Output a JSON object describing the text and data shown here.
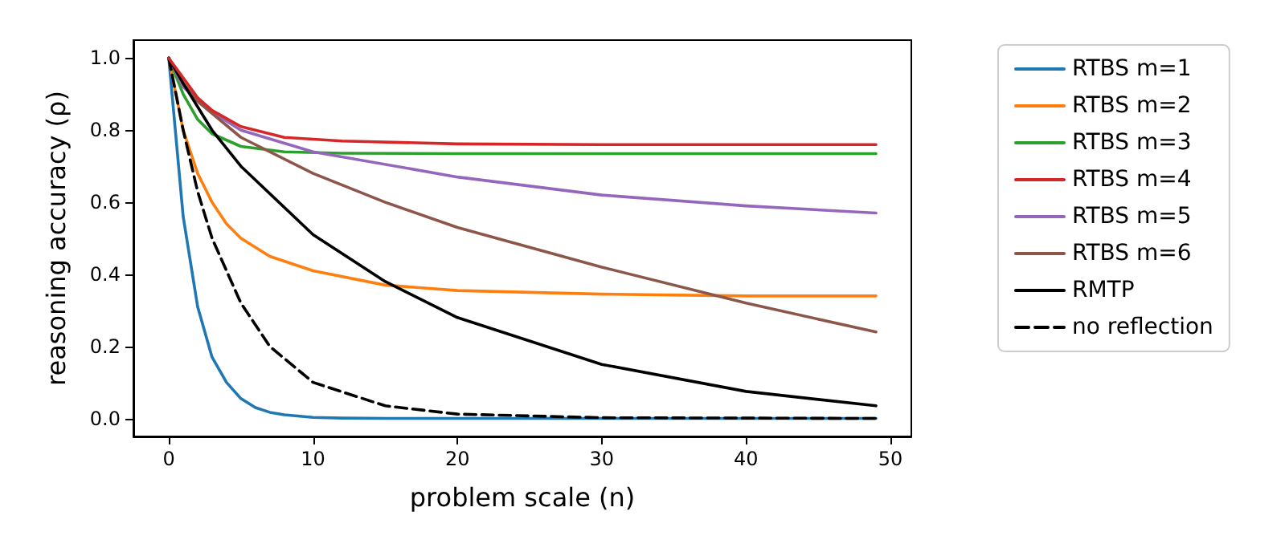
{
  "chart_data": {
    "type": "line",
    "xlabel": "problem scale (n)",
    "ylabel": "reasoning accuracy (ρ)",
    "xlim": [
      -2.45,
      51.45
    ],
    "ylim": [
      -0.05,
      1.05
    ],
    "xticks": [
      0,
      10,
      20,
      30,
      40,
      50
    ],
    "yticks": [
      {
        "value": 0,
        "label": "0.0"
      },
      {
        "value": 0.2,
        "label": "0.2"
      },
      {
        "value": 0.4,
        "label": "0.4"
      },
      {
        "value": 0.6,
        "label": "0.6"
      },
      {
        "value": 0.8,
        "label": "0.8"
      },
      {
        "value": 1,
        "label": "1.0"
      }
    ],
    "grid": false,
    "legend": "right",
    "marker": "none",
    "series": [
      {
        "name": "RTBS m=1",
        "color": "#1f77b4",
        "x": [
          0,
          1,
          2,
          3,
          4,
          5,
          6,
          7,
          8,
          10,
          12,
          15,
          20,
          30,
          49
        ],
        "values": [
          1,
          0.56,
          0.31,
          0.17,
          0.1,
          0.055,
          0.03,
          0.017,
          0.01,
          0.003,
          0.001,
          0,
          0,
          0,
          0
        ]
      },
      {
        "name": "RTBS m=2",
        "color": "#ff7f0e",
        "x": [
          0,
          1,
          2,
          3,
          4,
          5,
          7,
          10,
          15,
          20,
          30,
          40,
          49
        ],
        "values": [
          1,
          0.8,
          0.68,
          0.6,
          0.54,
          0.5,
          0.45,
          0.41,
          0.37,
          0.355,
          0.345,
          0.34,
          0.34
        ]
      },
      {
        "name": "RTBS m=3",
        "color": "#2ca02c",
        "x": [
          0,
          1,
          2,
          3,
          5,
          8,
          12,
          20,
          30,
          49
        ],
        "values": [
          1,
          0.9,
          0.83,
          0.79,
          0.755,
          0.74,
          0.736,
          0.735,
          0.735,
          0.735
        ]
      },
      {
        "name": "RTBS m=4",
        "color": "#d62728",
        "x": [
          0,
          1,
          2,
          3,
          5,
          8,
          12,
          20,
          30,
          49
        ],
        "values": [
          1,
          0.945,
          0.89,
          0.855,
          0.81,
          0.78,
          0.77,
          0.762,
          0.76,
          0.76
        ]
      },
      {
        "name": "RTBS m=5",
        "color": "#9467bd",
        "x": [
          0,
          1,
          3,
          5,
          10,
          20,
          30,
          40,
          49
        ],
        "values": [
          1,
          0.92,
          0.85,
          0.8,
          0.74,
          0.67,
          0.62,
          0.59,
          0.57
        ]
      },
      {
        "name": "RTBS m=6",
        "color": "#8c564b",
        "x": [
          0,
          1,
          2,
          5,
          10,
          15,
          20,
          30,
          40,
          49
        ],
        "values": [
          1,
          0.93,
          0.88,
          0.78,
          0.68,
          0.6,
          0.53,
          0.42,
          0.32,
          0.24
        ]
      },
      {
        "name": "RMTP",
        "color": "#000000",
        "x": [
          0,
          1,
          3,
          5,
          10,
          15,
          20,
          30,
          40,
          49
        ],
        "values": [
          1,
          0.93,
          0.8,
          0.7,
          0.51,
          0.38,
          0.28,
          0.15,
          0.075,
          0.035
        ]
      },
      {
        "name": "no reflection",
        "color": "#000000",
        "line_style": "dashed",
        "x": [
          0,
          1,
          2,
          3,
          5,
          7,
          10,
          15,
          20,
          30,
          49
        ],
        "values": [
          1,
          0.8,
          0.63,
          0.5,
          0.32,
          0.2,
          0.1,
          0.035,
          0.012,
          0.002,
          0
        ]
      }
    ]
  }
}
